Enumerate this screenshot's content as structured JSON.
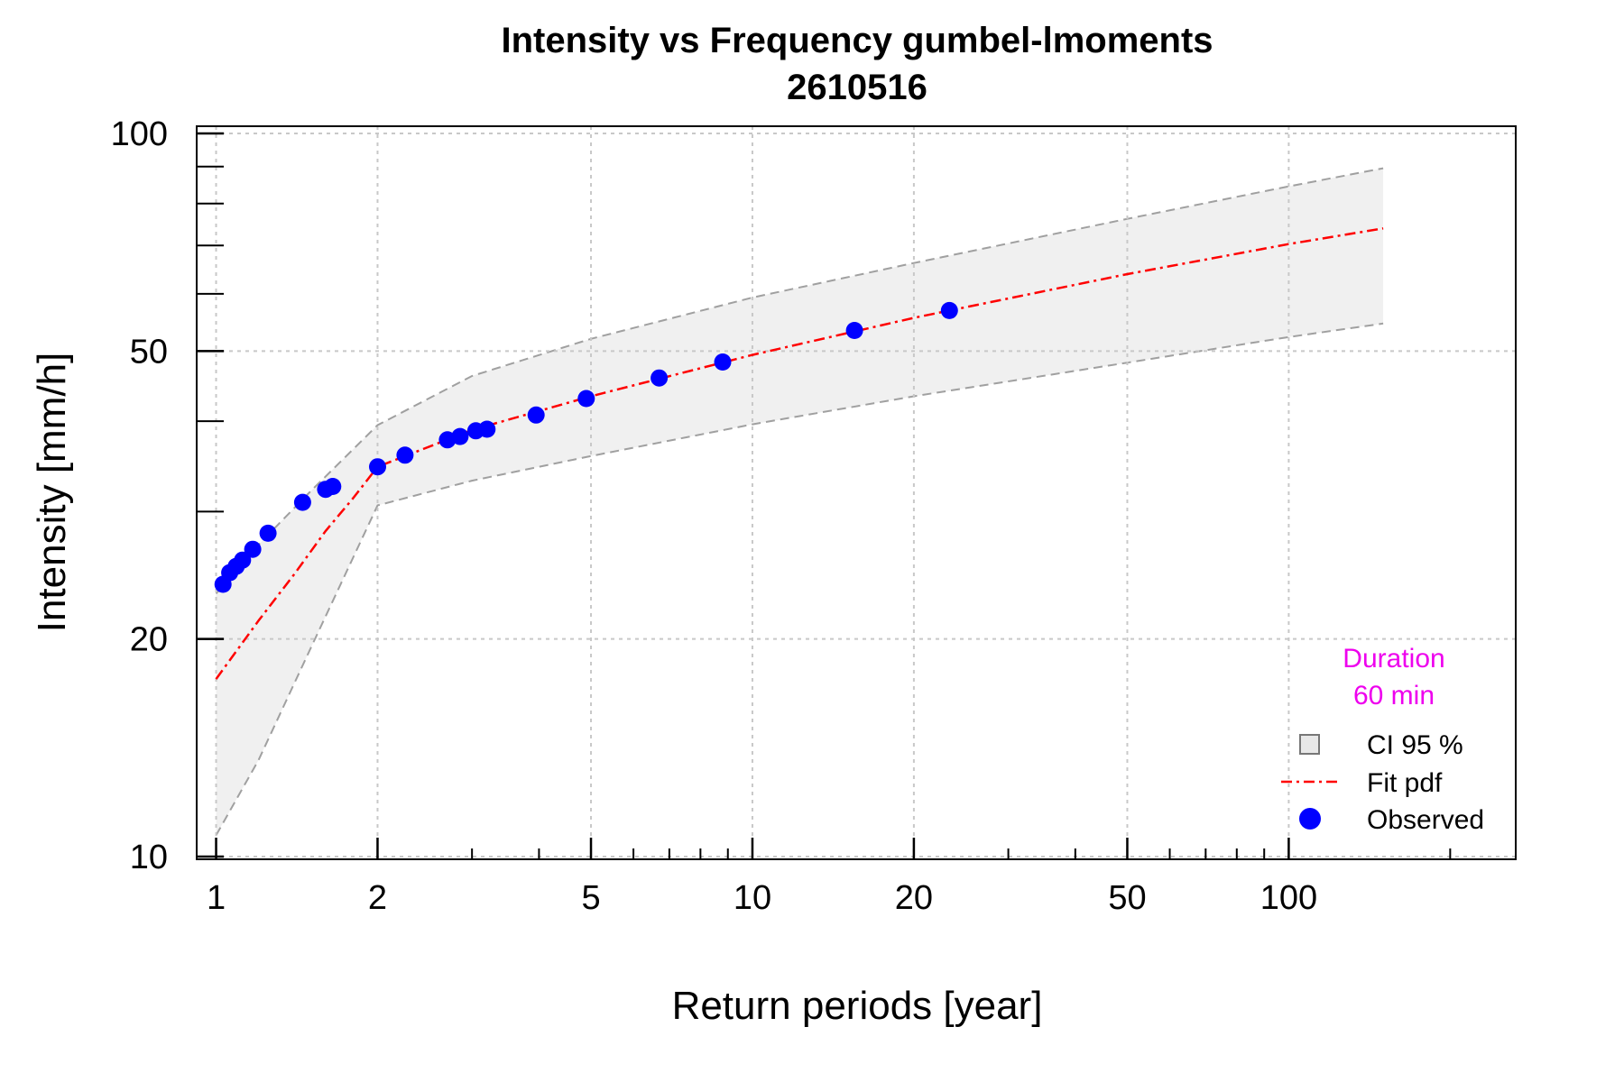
{
  "chart_data": {
    "type": "scatter",
    "title": "Intensity vs Frequency gumbel-lmoments",
    "subtitle": "2610516",
    "xlabel": "Return periods [year]",
    "ylabel": "Intensity [mm/h]",
    "x_scale": "log",
    "y_scale": "log",
    "xlim": [
      0.92,
      265
    ],
    "ylim": [
      10,
      100
    ],
    "x_ticks": [
      1,
      2,
      5,
      10,
      20,
      50,
      100
    ],
    "x_tick_labels": [
      "1",
      "2",
      "5",
      "10",
      "20",
      "50",
      "100"
    ],
    "y_ticks": [
      10,
      20,
      50,
      100
    ],
    "y_tick_labels": [
      "10",
      "20",
      "50",
      "100"
    ],
    "grid": true,
    "annotation": {
      "line1": "Duration",
      "line2": "60 min",
      "color": "#ee00ee"
    },
    "legend": {
      "position": "bottom-right",
      "entries": [
        {
          "label": "CI 95 %",
          "kind": "ci"
        },
        {
          "label": "Fit pdf",
          "kind": "fit"
        },
        {
          "label": "Observed",
          "kind": "observed"
        }
      ]
    },
    "colors": {
      "observed": "#0000ff",
      "fit": "#ff0000",
      "ci_fill": "#f0f0f0",
      "ci_line": "#a0a0a0"
    },
    "series": [
      {
        "name": "Observed",
        "kind": "points",
        "points": [
          [
            1.03,
            23.8
          ],
          [
            1.06,
            24.7
          ],
          [
            1.09,
            25.2
          ],
          [
            1.12,
            25.7
          ],
          [
            1.17,
            26.6
          ],
          [
            1.25,
            28.0
          ],
          [
            1.45,
            30.9
          ],
          [
            1.6,
            32.2
          ],
          [
            1.65,
            32.5
          ],
          [
            2.0,
            34.6
          ],
          [
            2.25,
            35.9
          ],
          [
            2.7,
            37.7
          ],
          [
            2.85,
            38.1
          ],
          [
            3.05,
            38.8
          ],
          [
            3.2,
            39.0
          ],
          [
            3.95,
            40.8
          ],
          [
            4.9,
            43.0
          ],
          [
            6.7,
            45.9
          ],
          [
            8.8,
            48.3
          ],
          [
            15.5,
            53.4
          ],
          [
            23.3,
            56.9
          ]
        ]
      },
      {
        "name": "Fit pdf",
        "kind": "line",
        "points": [
          [
            1.0,
            17.6
          ],
          [
            1.2,
            21.2
          ],
          [
            1.4,
            24.6
          ],
          [
            1.6,
            28.2
          ],
          [
            1.8,
            31.3
          ],
          [
            2.0,
            34.6
          ],
          [
            3.0,
            38.9
          ],
          [
            5.0,
            43.3
          ],
          [
            10.0,
            49.4
          ],
          [
            20.0,
            55.6
          ],
          [
            50.0,
            63.9
          ],
          [
            100.0,
            70.3
          ],
          [
            150.0,
            73.9
          ]
        ]
      },
      {
        "name": "CI 95 %",
        "kind": "band",
        "upper": [
          [
            1.0,
            23.1
          ],
          [
            1.2,
            27.0
          ],
          [
            1.5,
            32.0
          ],
          [
            2.0,
            39.5
          ],
          [
            3.0,
            46.2
          ],
          [
            5.0,
            52.0
          ],
          [
            10.0,
            59.3
          ],
          [
            20.0,
            66.2
          ],
          [
            50.0,
            76.2
          ],
          [
            100.0,
            84.5
          ],
          [
            150.0,
            89.5
          ]
        ],
        "lower": [
          [
            1.0,
            10.7
          ],
          [
            1.2,
            13.6
          ],
          [
            1.5,
            19.4
          ],
          [
            2.0,
            30.6
          ],
          [
            3.0,
            33.1
          ],
          [
            5.0,
            35.8
          ],
          [
            10.0,
            39.6
          ],
          [
            20.0,
            43.3
          ],
          [
            50.0,
            48.2
          ],
          [
            100.0,
            52.3
          ],
          [
            150.0,
            54.6
          ]
        ]
      }
    ]
  }
}
